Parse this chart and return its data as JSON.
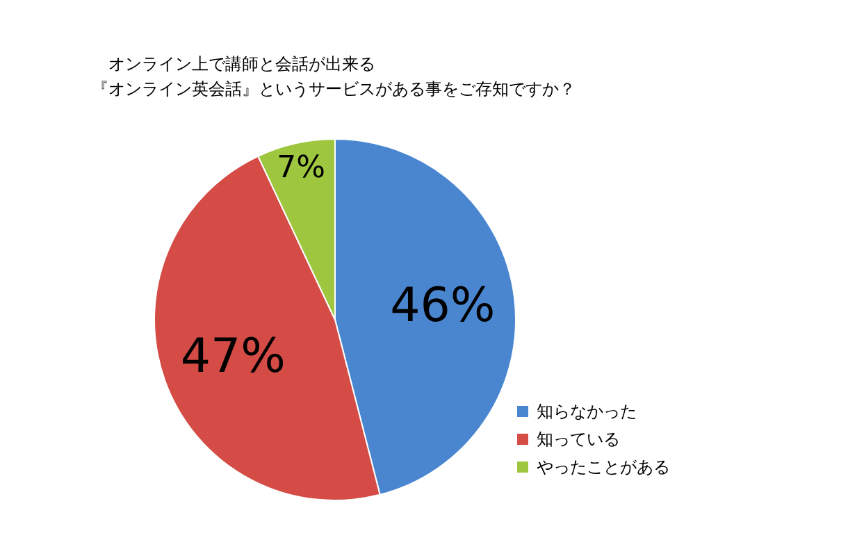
{
  "chart_data": {
    "type": "pie",
    "title": "オンライン上で講師と会話が出来る『オンライン英会話』というサービスがある事をご存知ですか？",
    "categories": [
      "知らなかった",
      "知っている",
      "やったことがある"
    ],
    "values": [
      46,
      47,
      7
    ],
    "colors": [
      "#4a86d0",
      "#d54b45",
      "#9ec63f"
    ],
    "value_labels": [
      "46%",
      "47%",
      "7%"
    ],
    "legend": "right"
  }
}
